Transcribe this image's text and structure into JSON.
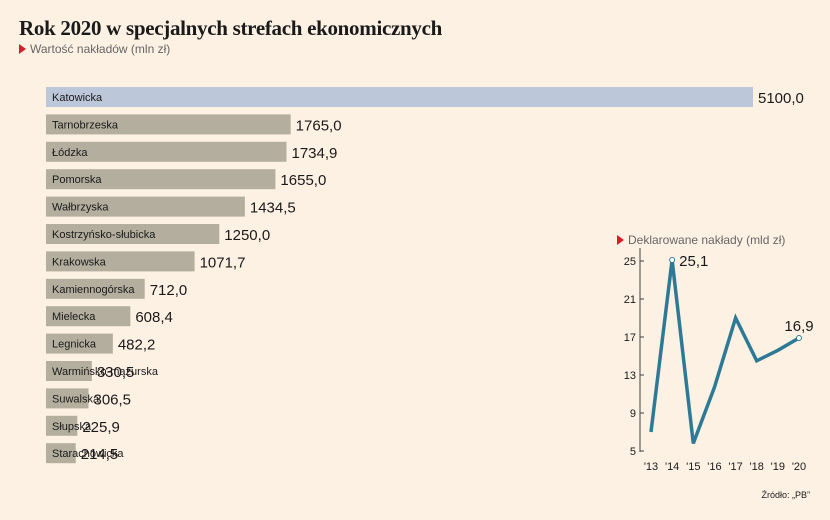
{
  "title": "Rok 2020 w specjalnych strefach ekonomicznych",
  "subtitle": "Wartość nakładów (mln zł)",
  "source": "Źródło: „PB”",
  "colors": {
    "background": "#fdf1e4",
    "bar": "#b3ae9e",
    "bar_highlight": "#bdc7da",
    "line": "#2d7a96",
    "marker": "#d3202a"
  },
  "chart_data": [
    {
      "type": "bar",
      "orientation": "horizontal",
      "title": "Wartość nakładów (mln zł)",
      "categories": [
        "Katowicka",
        "Tarnobrzeska",
        "Łódzka",
        "Pomorska",
        "Wałbrzyska",
        "Kostrzyńsko-słubicka",
        "Krakowska",
        "Kamiennogórska",
        "Mielecka",
        "Legnicka",
        "Warmińsko-mazurska",
        "Suwalska",
        "Słupska",
        "Starachowicka"
      ],
      "values": [
        5100.0,
        1765.0,
        1734.9,
        1655.0,
        1434.5,
        1250.0,
        1071.7,
        712.0,
        608.4,
        482.2,
        330.5,
        306.5,
        225.9,
        214.5
      ],
      "value_labels": [
        "5100,0",
        "1765,0",
        "1734,9",
        "1655,0",
        "1434,5",
        "1250,0",
        "1071,7",
        "712,0",
        "608,4",
        "482,2",
        "330,5",
        "306,5",
        "225,9",
        "214,5"
      ],
      "highlight": "Katowicka",
      "xlim": [
        0,
        5100
      ]
    },
    {
      "type": "line",
      "title": "Deklarowane nakłady (mld zł)",
      "x": [
        "'13",
        "'14",
        "'15",
        "'16",
        "'17",
        "'18",
        "'19",
        "'20"
      ],
      "y": [
        7.0,
        25.1,
        5.8,
        11.7,
        19.0,
        14.5,
        15.6,
        16.9
      ],
      "ylim": [
        5,
        25
      ],
      "yticks": [
        5,
        9,
        13,
        17,
        21,
        25
      ],
      "annotations": [
        {
          "index": 1,
          "label": "25,1"
        },
        {
          "index": 7,
          "label": "16,9"
        }
      ],
      "grid": false
    }
  ]
}
